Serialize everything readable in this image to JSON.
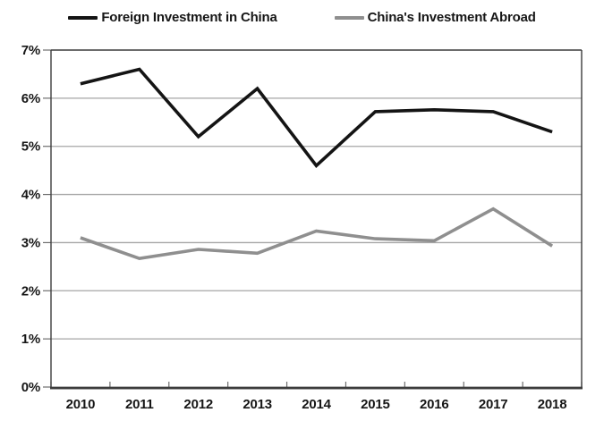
{
  "chart_data": {
    "type": "line",
    "categories": [
      "2010",
      "2011",
      "2012",
      "2013",
      "2014",
      "2015",
      "2016",
      "2017",
      "2018"
    ],
    "series": [
      {
        "name": "Foreign Investment in China",
        "color": "#141414",
        "values": [
          6.3,
          6.6,
          5.2,
          6.2,
          4.6,
          5.72,
          5.76,
          5.72,
          5.3
        ]
      },
      {
        "name": "China's Investment Abroad",
        "color": "#8f8f8f",
        "values": [
          3.1,
          2.67,
          2.86,
          2.78,
          3.24,
          3.08,
          3.04,
          3.7,
          2.93
        ]
      }
    ],
    "title": "",
    "xlabel": "",
    "ylabel": "",
    "ylim": [
      0,
      7
    ],
    "ytick_step": 1,
    "ytick_labels": [
      "0%",
      "1%",
      "2%",
      "3%",
      "4%",
      "5%",
      "6%",
      "7%"
    ],
    "grid": "horizontal",
    "legend_position": "top"
  },
  "colors": {
    "background": "#ffffff",
    "gridline": "#a6a6a6",
    "axis": "#3c3c3c",
    "tick": "#6e6e6e",
    "text": "#161616",
    "series_black": "#141414",
    "series_gray": "#8f8f8f"
  }
}
